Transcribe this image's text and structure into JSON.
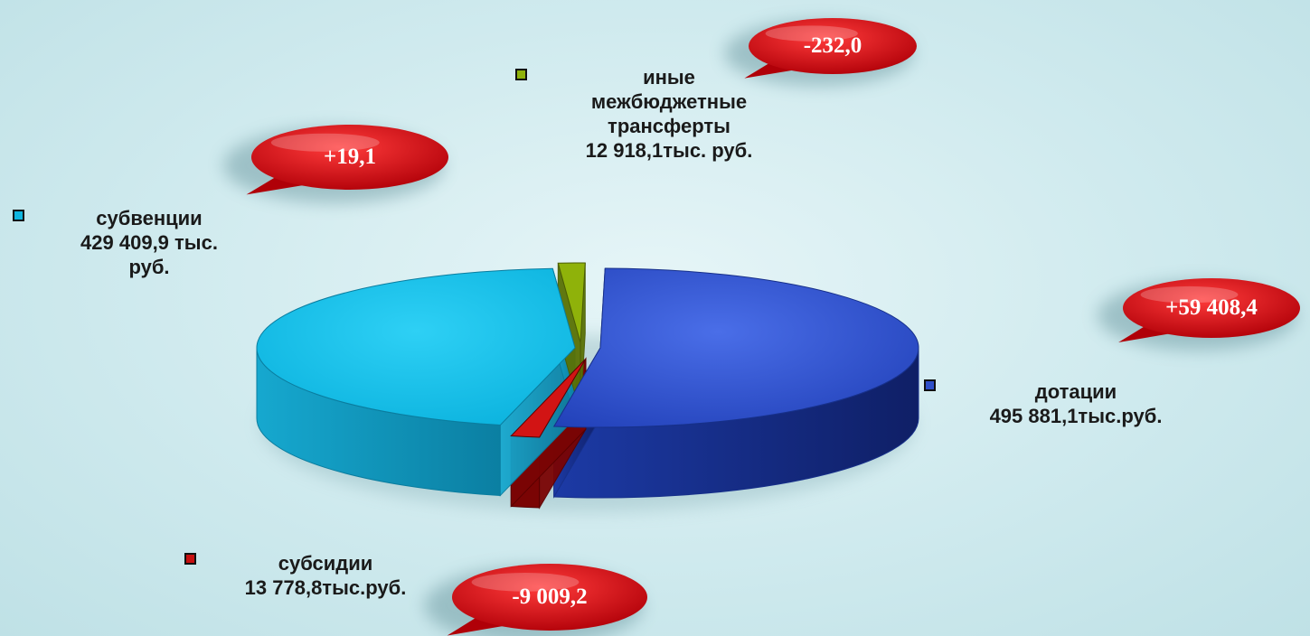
{
  "chart_data": {
    "type": "pie",
    "title": "",
    "slices": [
      {
        "key": "dotacii",
        "name": "дотации",
        "value_label": "495 881,1тыс.руб.",
        "value": 495881.1,
        "color": "#2f4fc8",
        "change": "+59 408,4"
      },
      {
        "key": "subsidii",
        "name": "субсидии",
        "value_label": "13 778,8тыс.руб.",
        "value": 13778.8,
        "color": "#c81010",
        "change": "-9 009,2"
      },
      {
        "key": "subvencii",
        "name": "субвенции",
        "value_label": "429 409,9 тыс. руб.",
        "value": 429409.9,
        "color": "#10b6e0",
        "change": "+19,1"
      },
      {
        "key": "inye",
        "name": "иные межбюджетные трансферты",
        "value_label": "12 918,1тыс. руб.",
        "value": 12918.1,
        "color": "#8fb20a",
        "change": "-232,0"
      }
    ],
    "unit": "тыс. руб.",
    "legend": "labels-beside-slices",
    "style": "3d-exploded"
  },
  "labels": {
    "dotacii": {
      "line1": "дотации",
      "line2": "495 881,1тыс.руб."
    },
    "subsidii": {
      "line1": "субсидии",
      "line2": "13 778,8тыс.руб."
    },
    "subvencii": {
      "line1": "субвенции",
      "line2": "429 409,9 тыс.",
      "line3": "руб."
    },
    "inye": {
      "line1": "иные",
      "line2": "межбюджетные",
      "line3": "трансферты",
      "line4": "12 918,1тыс. руб."
    }
  },
  "bubbles": {
    "dotacii": "+59 408,4",
    "subsidii": "-9 009,2",
    "subvencii": "+19,1",
    "inye": "-232,0"
  },
  "colors": {
    "bubble": "#c8000a",
    "background": "#d3ecef"
  }
}
